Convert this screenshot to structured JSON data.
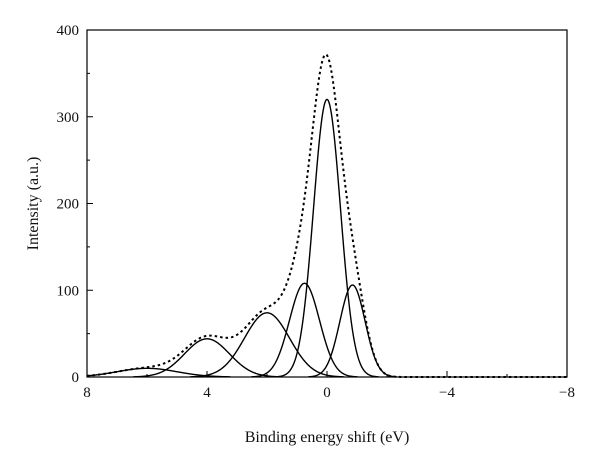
{
  "chart_data": {
    "type": "line",
    "xlabel": "Binding energy shift (eV)",
    "ylabel": "Intensity (a.u.)",
    "xlim": [
      8,
      -8
    ],
    "ylim": [
      0,
      400
    ],
    "x_reversed": true,
    "x_ticks": [
      8,
      4,
      0,
      -4,
      -8
    ],
    "x_tick_labels": [
      "8",
      "4",
      "0",
      "−4",
      "−8"
    ],
    "y_ticks": [
      0,
      100,
      200,
      300,
      400
    ],
    "y_tick_labels": [
      "0",
      "100",
      "200",
      "300",
      "400"
    ],
    "grid": false,
    "legend": "none",
    "series": [
      {
        "style": "solid",
        "color": "#000000",
        "center": 0.0,
        "amplitude": 320,
        "sigma": 0.45
      },
      {
        "style": "solid",
        "color": "#000000",
        "center": -0.85,
        "amplitude": 106,
        "sigma": 0.42
      },
      {
        "style": "solid",
        "color": "#000000",
        "center": 0.75,
        "amplitude": 108,
        "sigma": 0.5
      },
      {
        "style": "solid",
        "color": "#000000",
        "center": 2.0,
        "amplitude": 74,
        "sigma": 0.75
      },
      {
        "style": "solid",
        "color": "#000000",
        "center": 4.0,
        "amplitude": 44,
        "sigma": 0.75
      },
      {
        "style": "solid",
        "color": "#000000",
        "center": 6.0,
        "amplitude": 10,
        "sigma": 1.0
      },
      {
        "style": "dotted",
        "color": "#000000",
        "kind": "envelope"
      }
    ]
  }
}
